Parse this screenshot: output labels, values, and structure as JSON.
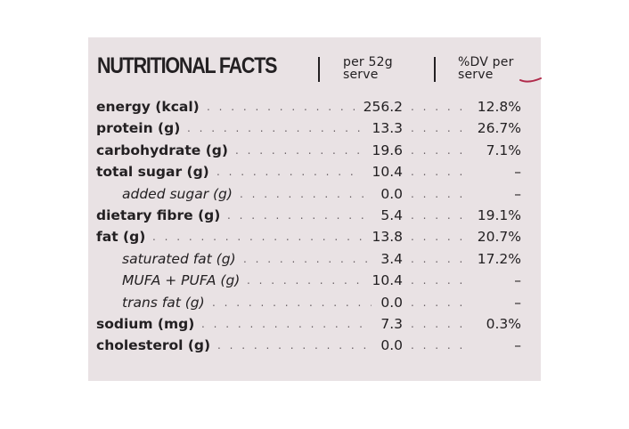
{
  "panel": {
    "title": "NUTRITIONAL FACTS",
    "col_amount": [
      "per 52g",
      "serve"
    ],
    "col_dv": [
      "%DV per",
      "serve"
    ],
    "accent_color": "#b02a4a"
  },
  "rows": [
    {
      "label": "energy (kcal)",
      "amount": "256.2",
      "dv": "12.8%",
      "indent": false
    },
    {
      "label": "protein (g)",
      "amount": "13.3",
      "dv": "26.7%",
      "indent": false
    },
    {
      "label": "carbohydrate (g)",
      "amount": "19.6",
      "dv": "7.1%",
      "indent": false
    },
    {
      "label": "total sugar (g)",
      "amount": "10.4",
      "dv": "–",
      "indent": false
    },
    {
      "label": "added sugar (g)",
      "amount": "0.0",
      "dv": "–",
      "indent": true
    },
    {
      "label": "dietary fibre (g)",
      "amount": "5.4",
      "dv": "19.1%",
      "indent": false
    },
    {
      "label": "fat (g)",
      "amount": "13.8",
      "dv": "20.7%",
      "indent": false
    },
    {
      "label": "saturated fat (g)",
      "amount": "3.4",
      "dv": "17.2%",
      "indent": true
    },
    {
      "label": "MUFA + PUFA (g)",
      "amount": "10.4",
      "dv": "–",
      "indent": true
    },
    {
      "label": "trans fat (g)",
      "amount": "0.0",
      "dv": "–",
      "indent": true
    },
    {
      "label": "sodium (mg)",
      "amount": "7.3",
      "dv": "0.3%",
      "indent": false
    },
    {
      "label": "cholesterol (g)",
      "amount": "0.0",
      "dv": "–",
      "indent": false
    }
  ]
}
